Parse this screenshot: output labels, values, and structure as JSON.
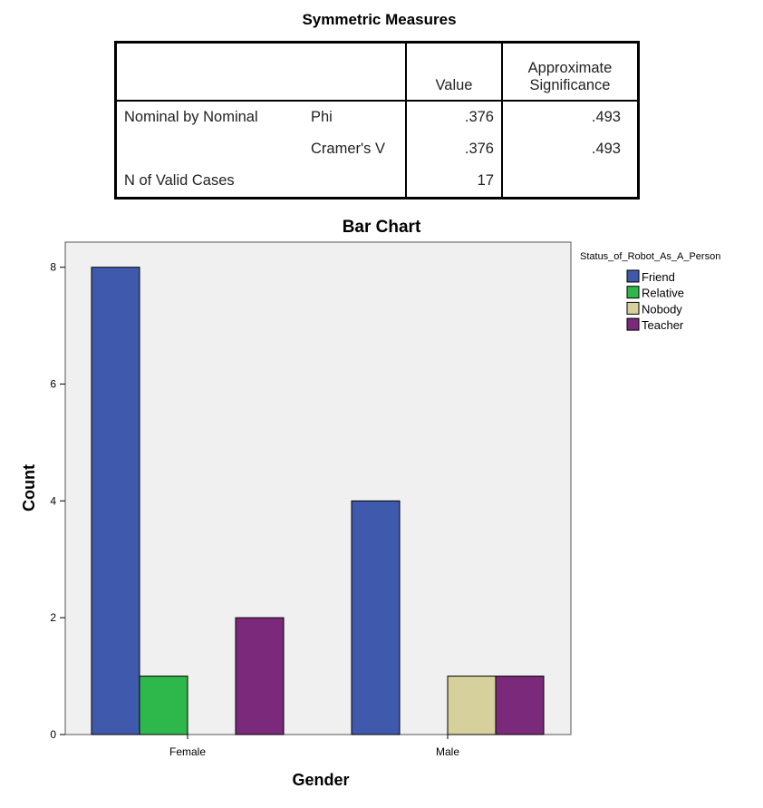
{
  "table": {
    "title": "Symmetric Measures",
    "headers": [
      "",
      "",
      "Value",
      "Approximate Significance"
    ],
    "header_value": "Value",
    "header_sig_line1": "Approximate",
    "header_sig_line2": "Significance",
    "rows": [
      {
        "group": "Nominal by Nominal",
        "measure": "Phi",
        "value": ".376",
        "sig": ".493"
      },
      {
        "group": "",
        "measure": "Cramer's V",
        "value": ".376",
        "sig": ".493"
      },
      {
        "group": "N of Valid Cases",
        "measure": "",
        "value": "17",
        "sig": ""
      }
    ]
  },
  "chart_data": {
    "type": "bar",
    "title": "Bar Chart",
    "xlabel": "Gender",
    "ylabel": "Count",
    "categories": [
      "Female",
      "Male"
    ],
    "legend_title": "Status_of_Robot_As_A_Person",
    "legend_placement": "right",
    "series": [
      {
        "name": "Friend",
        "color": "#3f59ac",
        "values": [
          8,
          4
        ]
      },
      {
        "name": "Relative",
        "color": "#2eb84b",
        "values": [
          1,
          0
        ]
      },
      {
        "name": "Nobody",
        "color": "#d6d09c",
        "values": [
          0,
          1
        ]
      },
      {
        "name": "Teacher",
        "color": "#7b2a7b",
        "values": [
          2,
          1
        ]
      }
    ],
    "yticks": [
      0,
      2,
      4,
      6,
      8
    ],
    "ylim": [
      0,
      8.43
    ],
    "grid": false,
    "plot_background": "#f0f0f0"
  }
}
